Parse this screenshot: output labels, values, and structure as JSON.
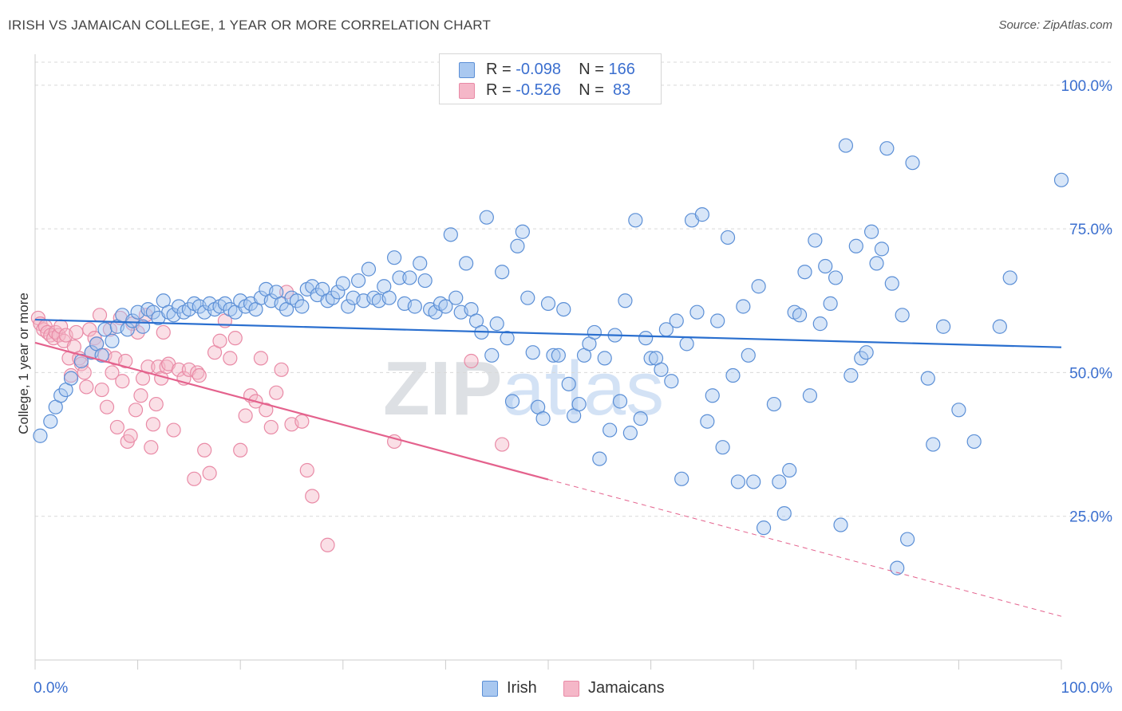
{
  "title": "IRISH VS JAMAICAN COLLEGE, 1 YEAR OR MORE CORRELATION CHART",
  "source": "Source: ZipAtlas.com",
  "colors": {
    "irish_fill": "#a9c8f0",
    "irish_stroke": "#5b8fd6",
    "irish_line": "#2a6fcf",
    "jamaican_fill": "#f5b7c8",
    "jamaican_stroke": "#e98aa6",
    "jamaican_line": "#e4628d",
    "axis_text": "#3b6fcf",
    "grid": "#d9d9d9"
  },
  "legend": {
    "rows": [
      {
        "r_label": "R =",
        "r_value": "-0.098",
        "n_label": "N =",
        "n_value": "166"
      },
      {
        "r_label": "R =",
        "r_value": "-0.526",
        "n_label": "N =",
        "n_value": " 83"
      }
    ]
  },
  "bottom_legend": {
    "irish": "Irish",
    "jamaicans": "Jamaicans"
  },
  "chart_data": {
    "type": "scatter",
    "title": "IRISH VS JAMAICAN COLLEGE, 1 YEAR OR MORE CORRELATION CHART",
    "xlabel": "",
    "ylabel": "College, 1 year or more",
    "xlim": [
      0,
      100
    ],
    "ylim": [
      0,
      104
    ],
    "x_tick_labels": [
      "0.0%",
      "100.0%"
    ],
    "y_ticks": [
      25,
      50,
      75,
      100
    ],
    "y_tick_labels": [
      "25.0%",
      "50.0%",
      "75.0%",
      "100.0%"
    ],
    "grid": true,
    "legend_position": "top-center",
    "watermark": "ZIPatlas",
    "series": [
      {
        "name": "Irish",
        "R": -0.098,
        "N": 166,
        "trend": {
          "x0": 0,
          "y0": 59.2,
          "x1": 100,
          "y1": 54.4
        },
        "points": [
          [
            0.5,
            39.0
          ],
          [
            1.5,
            41.5
          ],
          [
            2.0,
            44.0
          ],
          [
            2.5,
            46.0
          ],
          [
            3.0,
            47.0
          ],
          [
            3.5,
            49.0
          ],
          [
            4.5,
            52.0
          ],
          [
            5.5,
            53.5
          ],
          [
            6.0,
            55.0
          ],
          [
            6.5,
            53.0
          ],
          [
            7.5,
            55.5
          ],
          [
            6.8,
            57.5
          ],
          [
            8.0,
            58.0
          ],
          [
            9.0,
            57.5
          ],
          [
            8.5,
            60.0
          ],
          [
            9.5,
            59.0
          ],
          [
            10.0,
            60.5
          ],
          [
            10.5,
            58.0
          ],
          [
            11.0,
            61.0
          ],
          [
            11.5,
            60.5
          ],
          [
            12.0,
            59.5
          ],
          [
            12.5,
            62.5
          ],
          [
            13.0,
            60.5
          ],
          [
            13.5,
            60.0
          ],
          [
            14.0,
            61.5
          ],
          [
            14.5,
            60.5
          ],
          [
            15.0,
            61.0
          ],
          [
            15.5,
            62.0
          ],
          [
            16.0,
            61.5
          ],
          [
            16.5,
            60.5
          ],
          [
            17.0,
            62.0
          ],
          [
            17.5,
            61.0
          ],
          [
            18.0,
            61.5
          ],
          [
            18.5,
            62.0
          ],
          [
            19.0,
            61.0
          ],
          [
            19.5,
            60.5
          ],
          [
            20.0,
            62.5
          ],
          [
            20.5,
            61.5
          ],
          [
            21.0,
            62.0
          ],
          [
            21.5,
            61.0
          ],
          [
            22.0,
            63.0
          ],
          [
            22.5,
            64.5
          ],
          [
            23.0,
            62.5
          ],
          [
            23.5,
            64.0
          ],
          [
            24.0,
            62.0
          ],
          [
            24.5,
            61.0
          ],
          [
            25.0,
            63.0
          ],
          [
            25.5,
            62.5
          ],
          [
            26.0,
            61.5
          ],
          [
            26.5,
            64.5
          ],
          [
            27.0,
            65.0
          ],
          [
            27.5,
            63.5
          ],
          [
            28.0,
            64.5
          ],
          [
            28.5,
            62.5
          ],
          [
            29.0,
            63.0
          ],
          [
            29.5,
            64.0
          ],
          [
            30.0,
            65.5
          ],
          [
            30.5,
            61.5
          ],
          [
            31.0,
            63.0
          ],
          [
            31.5,
            66.0
          ],
          [
            32.0,
            62.5
          ],
          [
            32.5,
            68.0
          ],
          [
            33.0,
            63.0
          ],
          [
            33.5,
            62.5
          ],
          [
            34.0,
            65.0
          ],
          [
            34.5,
            63.0
          ],
          [
            35.0,
            70.0
          ],
          [
            35.5,
            66.5
          ],
          [
            36.0,
            62.0
          ],
          [
            36.5,
            66.5
          ],
          [
            37.0,
            61.5
          ],
          [
            37.5,
            69.0
          ],
          [
            38.0,
            66.0
          ],
          [
            38.5,
            61.0
          ],
          [
            39.0,
            60.5
          ],
          [
            39.5,
            62.0
          ],
          [
            40.0,
            61.5
          ],
          [
            40.5,
            74.0
          ],
          [
            41.0,
            63.0
          ],
          [
            41.5,
            60.5
          ],
          [
            42.0,
            69.0
          ],
          [
            42.5,
            61.0
          ],
          [
            43.0,
            59.0
          ],
          [
            43.5,
            57.0
          ],
          [
            44.0,
            77.0
          ],
          [
            44.5,
            53.0
          ],
          [
            45.0,
            58.5
          ],
          [
            45.5,
            67.5
          ],
          [
            46.0,
            56.0
          ],
          [
            46.5,
            45.0
          ],
          [
            47.0,
            72.0
          ],
          [
            47.5,
            74.5
          ],
          [
            48.0,
            63.0
          ],
          [
            48.5,
            53.5
          ],
          [
            49.0,
            44.0
          ],
          [
            49.5,
            42.0
          ],
          [
            50.0,
            62.0
          ],
          [
            50.5,
            53.0
          ],
          [
            51.0,
            53.0
          ],
          [
            51.5,
            61.0
          ],
          [
            52.0,
            48.0
          ],
          [
            52.5,
            42.5
          ],
          [
            53.0,
            44.5
          ],
          [
            53.5,
            53.0
          ],
          [
            54.0,
            55.0
          ],
          [
            54.5,
            57.0
          ],
          [
            55.0,
            35.0
          ],
          [
            55.5,
            52.5
          ],
          [
            56.0,
            40.0
          ],
          [
            56.5,
            56.5
          ],
          [
            57.0,
            45.0
          ],
          [
            57.5,
            62.5
          ],
          [
            58.0,
            39.5
          ],
          [
            58.5,
            76.5
          ],
          [
            59.0,
            42.0
          ],
          [
            59.5,
            56.0
          ],
          [
            60.0,
            52.5
          ],
          [
            60.5,
            52.5
          ],
          [
            61.0,
            50.5
          ],
          [
            61.5,
            57.5
          ],
          [
            62.0,
            48.5
          ],
          [
            62.5,
            59.0
          ],
          [
            63.0,
            31.5
          ],
          [
            63.5,
            55.0
          ],
          [
            64.0,
            76.5
          ],
          [
            64.5,
            60.5
          ],
          [
            65.0,
            77.5
          ],
          [
            65.5,
            41.5
          ],
          [
            66.0,
            46.0
          ],
          [
            66.5,
            59.0
          ],
          [
            67.0,
            37.0
          ],
          [
            67.5,
            73.5
          ],
          [
            68.0,
            49.5
          ],
          [
            68.5,
            31.0
          ],
          [
            69.0,
            61.5
          ],
          [
            69.5,
            53.0
          ],
          [
            70.0,
            31.0
          ],
          [
            70.5,
            65.0
          ],
          [
            71.0,
            23.0
          ],
          [
            72.0,
            44.5
          ],
          [
            72.5,
            31.0
          ],
          [
            73.0,
            25.5
          ],
          [
            73.5,
            33.0
          ],
          [
            74.0,
            60.5
          ],
          [
            74.5,
            60.0
          ],
          [
            75.0,
            67.5
          ],
          [
            75.5,
            46.0
          ],
          [
            76.0,
            73.0
          ],
          [
            76.5,
            58.5
          ],
          [
            77.0,
            68.5
          ],
          [
            77.5,
            62.0
          ],
          [
            78.0,
            66.5
          ],
          [
            78.5,
            23.5
          ],
          [
            79.0,
            89.5
          ],
          [
            79.5,
            49.5
          ],
          [
            80.0,
            72.0
          ],
          [
            80.5,
            52.5
          ],
          [
            81.0,
            53.5
          ],
          [
            81.5,
            74.5
          ],
          [
            82.0,
            69.0
          ],
          [
            82.5,
            71.5
          ],
          [
            83.0,
            89.0
          ],
          [
            83.5,
            65.5
          ],
          [
            84.0,
            16.0
          ],
          [
            84.5,
            60.0
          ],
          [
            85.0,
            21.0
          ],
          [
            85.5,
            86.5
          ],
          [
            87.0,
            49.0
          ],
          [
            87.5,
            37.5
          ],
          [
            88.5,
            58.0
          ],
          [
            90.0,
            43.5
          ],
          [
            91.5,
            38.0
          ],
          [
            94.0,
            58.0
          ],
          [
            95.0,
            66.5
          ],
          [
            100.0,
            83.5
          ]
        ]
      },
      {
        "name": "Jamaicans",
        "R": -0.526,
        "N": 83,
        "trend": {
          "x0": 0,
          "y0": 55.2,
          "x1": 50,
          "y1": 31.4
        },
        "trend_dashed": {
          "x0": 50,
          "y0": 31.4,
          "x1": 100,
          "y1": 7.6
        },
        "points": [
          [
            0.3,
            59.5
          ],
          [
            0.5,
            58.5
          ],
          [
            0.8,
            57.5
          ],
          [
            1.0,
            58.0
          ],
          [
            1.2,
            57.0
          ],
          [
            1.5,
            56.5
          ],
          [
            1.8,
            56.0
          ],
          [
            2.0,
            57.0
          ],
          [
            2.3,
            56.5
          ],
          [
            2.5,
            58.0
          ],
          [
            2.8,
            55.5
          ],
          [
            3.0,
            56.5
          ],
          [
            3.3,
            52.5
          ],
          [
            3.5,
            49.5
          ],
          [
            3.8,
            54.5
          ],
          [
            4.0,
            57.0
          ],
          [
            4.3,
            52.5
          ],
          [
            4.5,
            51.5
          ],
          [
            4.8,
            50.0
          ],
          [
            5.0,
            47.5
          ],
          [
            5.3,
            57.5
          ],
          [
            5.5,
            53.5
          ],
          [
            5.8,
            56.0
          ],
          [
            6.0,
            55.0
          ],
          [
            6.3,
            60.0
          ],
          [
            6.5,
            47.0
          ],
          [
            6.8,
            53.0
          ],
          [
            7.0,
            44.0
          ],
          [
            7.3,
            57.5
          ],
          [
            7.5,
            50.0
          ],
          [
            7.8,
            52.5
          ],
          [
            8.0,
            40.5
          ],
          [
            8.3,
            59.5
          ],
          [
            8.5,
            48.5
          ],
          [
            8.8,
            52.0
          ],
          [
            9.0,
            38.0
          ],
          [
            9.3,
            39.0
          ],
          [
            9.5,
            58.5
          ],
          [
            9.8,
            43.5
          ],
          [
            10.0,
            57.0
          ],
          [
            10.3,
            46.0
          ],
          [
            10.5,
            49.0
          ],
          [
            10.8,
            60.0
          ],
          [
            11.0,
            51.0
          ],
          [
            11.3,
            37.0
          ],
          [
            11.5,
            41.0
          ],
          [
            11.8,
            44.5
          ],
          [
            12.0,
            51.0
          ],
          [
            12.3,
            49.0
          ],
          [
            12.5,
            57.0
          ],
          [
            12.8,
            51.0
          ],
          [
            13.0,
            51.5
          ],
          [
            13.5,
            40.0
          ],
          [
            14.0,
            50.5
          ],
          [
            14.5,
            49.0
          ],
          [
            15.0,
            50.5
          ],
          [
            15.5,
            31.5
          ],
          [
            15.8,
            50.0
          ],
          [
            16.0,
            49.5
          ],
          [
            16.5,
            36.5
          ],
          [
            17.0,
            32.5
          ],
          [
            17.5,
            53.5
          ],
          [
            18.0,
            55.5
          ],
          [
            18.5,
            59.0
          ],
          [
            19.0,
            52.5
          ],
          [
            19.5,
            56.0
          ],
          [
            20.0,
            36.5
          ],
          [
            20.5,
            42.5
          ],
          [
            21.0,
            46.0
          ],
          [
            21.5,
            45.0
          ],
          [
            22.0,
            52.5
          ],
          [
            22.5,
            43.5
          ],
          [
            23.0,
            40.5
          ],
          [
            23.5,
            46.5
          ],
          [
            24.0,
            50.5
          ],
          [
            24.5,
            64.0
          ],
          [
            25.0,
            41.0
          ],
          [
            26.0,
            41.5
          ],
          [
            26.5,
            33.0
          ],
          [
            27.0,
            28.5
          ],
          [
            28.5,
            20.0
          ],
          [
            35.0,
            38.0
          ],
          [
            42.5,
            52.0
          ],
          [
            45.5,
            37.5
          ]
        ]
      }
    ]
  }
}
